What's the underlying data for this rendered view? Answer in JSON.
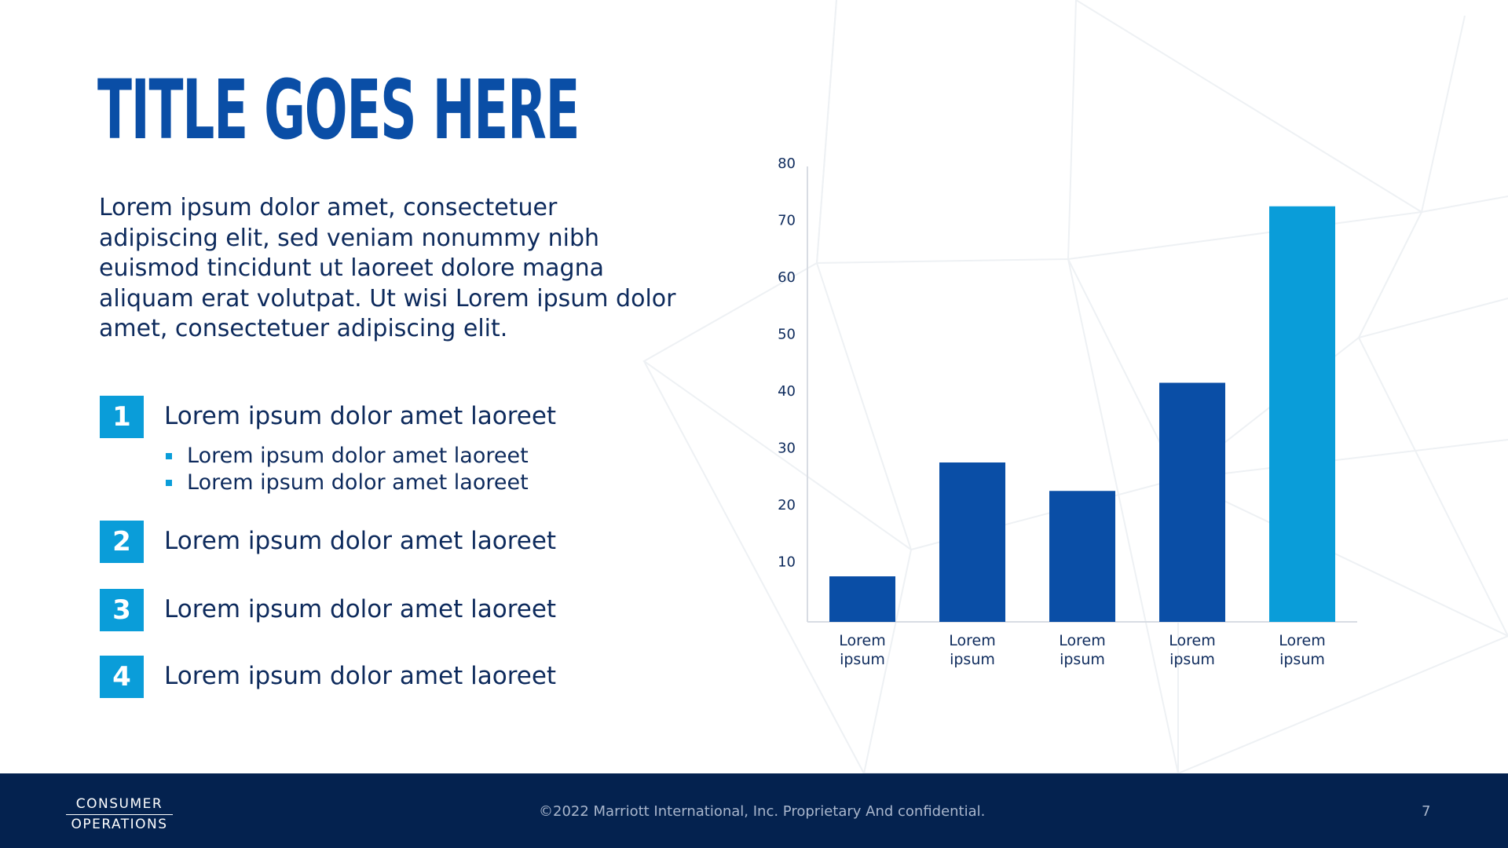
{
  "slide": {
    "title": "TITLE GOES HERE",
    "intro": "Lorem ipsum dolor amet, consectetuer adipiscing elit, sed veniam nonummy nibh euismod tincidunt ut laoreet dolore magna aliquam erat volutpat. Ut wisi Lorem ipsum dolor amet, consectetuer adipiscing elit.",
    "items": [
      {
        "number": "1",
        "label": "Lorem ipsum dolor amet laoreet"
      },
      {
        "number": "2",
        "label": "Lorem ipsum dolor amet laoreet"
      },
      {
        "number": "3",
        "label": "Lorem ipsum dolor amet laoreet"
      },
      {
        "number": "4",
        "label": "Lorem ipsum dolor amet laoreet"
      }
    ],
    "sub_items": [
      "Lorem ipsum dolor amet laoreet",
      "Lorem ipsum dolor amet laoreet"
    ]
  },
  "footer": {
    "brand_line1": "CONSUMER",
    "brand_line2": "OPERATIONS",
    "copyright": "©2022 Marriott International, Inc. Proprietary And confidential.",
    "page_number": "7"
  },
  "colors": {
    "title": "#0a4ea6",
    "text": "#0d2a5c",
    "accent": "#0a9dd9",
    "bar_dark": "#0a4ea6",
    "bar_highlight": "#0a9dd9",
    "footer_bg": "#04224f",
    "axis": "#d8dce3",
    "bg_lines": "#eef1f4"
  },
  "chart_data": {
    "type": "bar",
    "categories": [
      "Lorem ipsum",
      "Lorem ipsum",
      "Lorem ipsum",
      "Lorem ipsum",
      "Lorem ipsum"
    ],
    "values": [
      8,
      28,
      23,
      42,
      73
    ],
    "highlight_index": 4,
    "ylim": [
      0,
      80
    ],
    "yticks": [
      10,
      20,
      30,
      40,
      50,
      60,
      70,
      80
    ],
    "grid": false,
    "title": "",
    "xlabel": "",
    "ylabel": ""
  }
}
